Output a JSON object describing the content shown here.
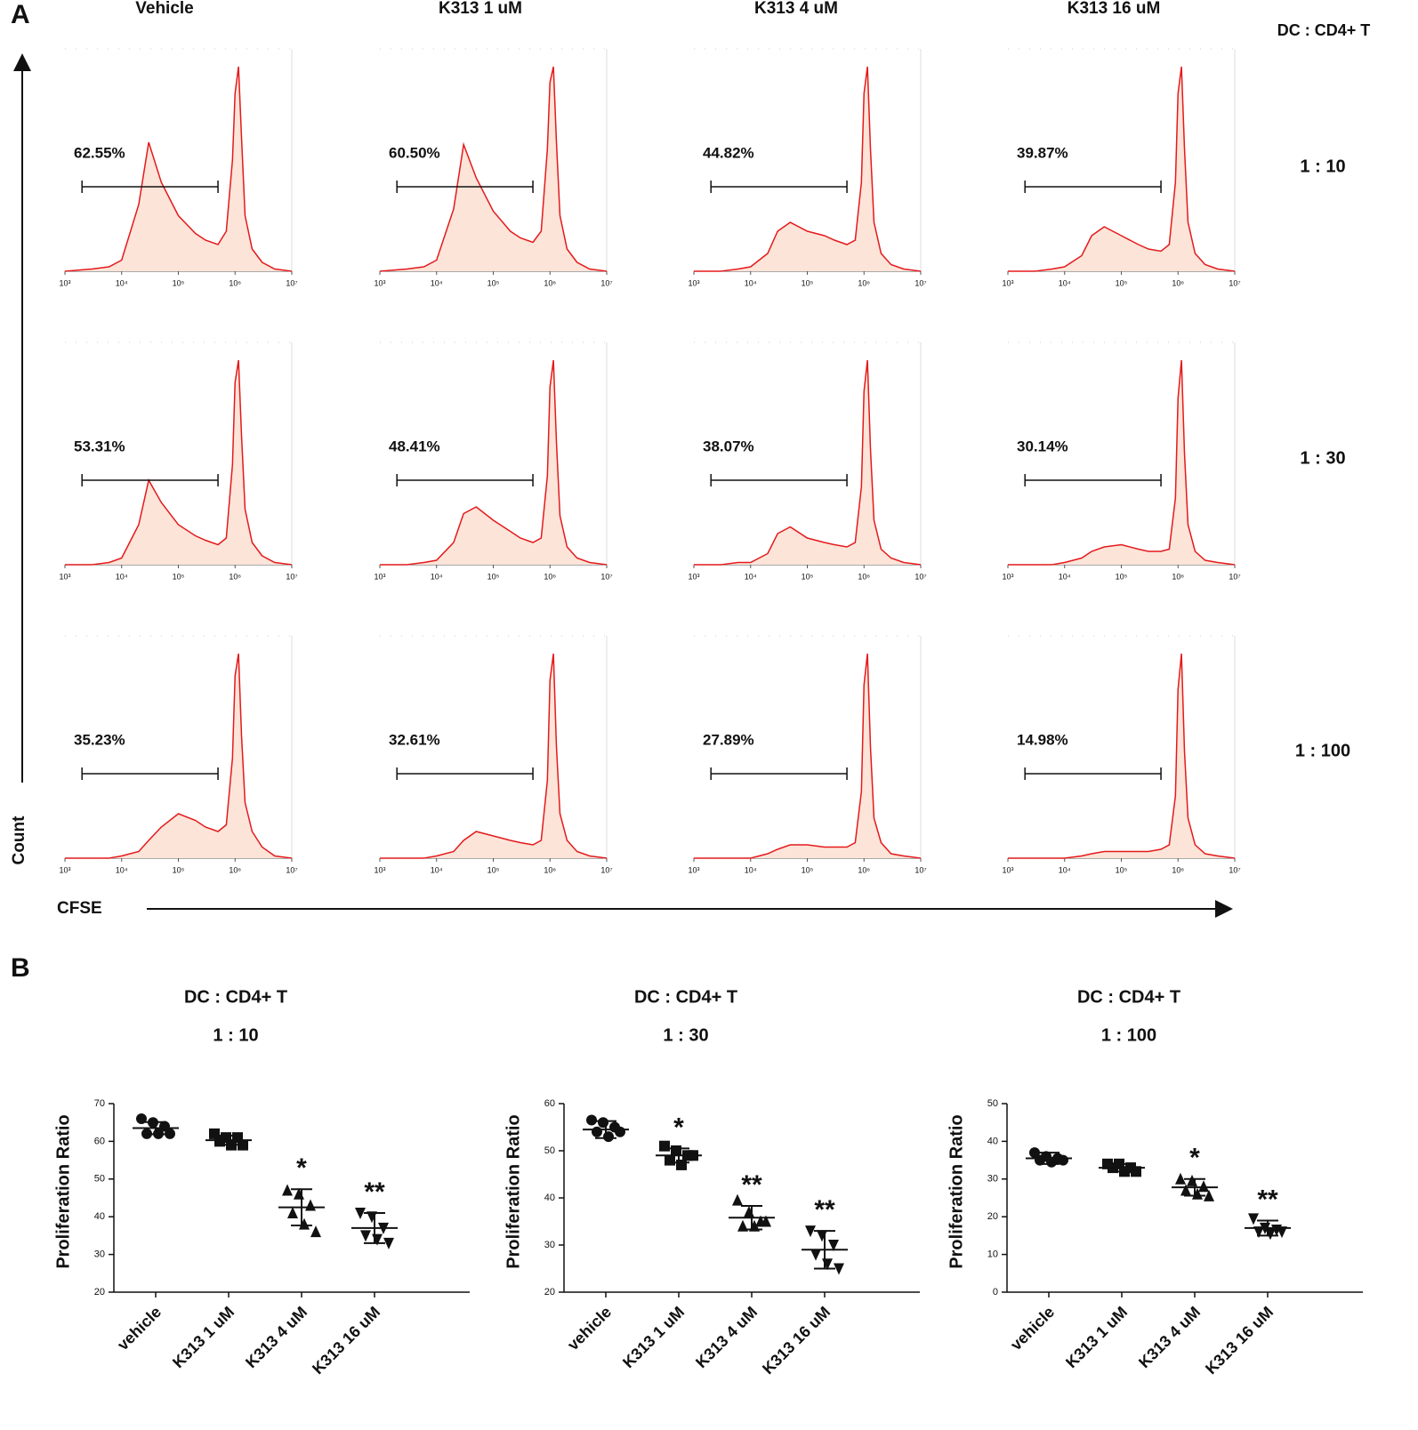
{
  "panel_a": {
    "label": "A",
    "column_titles": [
      "Vehicle",
      "K313 1 uM",
      "K313 4 uM",
      "K313  16 uM"
    ],
    "row_header": "DC : CD4+ T",
    "row_labels": [
      "1 : 10",
      "1 : 30",
      "1 : 100"
    ],
    "y_label": "Count",
    "x_label": "CFSE"
  },
  "panel_b": {
    "label": "B"
  },
  "chart_data": [
    {
      "type": "area",
      "x": [
        1000,
        3000,
        6000,
        10000,
        20000,
        30000,
        50000,
        100000,
        200000,
        300000,
        500000,
        700000,
        900000,
        1000000,
        1150000,
        1300000,
        1500000,
        2000000,
        3000000,
        5000000,
        10000000
      ],
      "values": [
        0,
        1,
        2,
        5,
        30,
        58,
        40,
        25,
        17,
        14,
        12,
        18,
        50,
        80,
        92,
        60,
        25,
        10,
        4,
        1,
        0
      ],
      "color": "#e31a1c",
      "fill": "#fde4d8",
      "log_x": true,
      "xlim": [
        1000,
        10000000
      ],
      "ylim": [
        0,
        100
      ],
      "xticks": [
        {
          "value": 1000,
          "label": "10³"
        },
        {
          "value": 10000,
          "label": "10⁴"
        },
        {
          "value": 100000,
          "label": "10⁵"
        },
        {
          "value": 1000000,
          "label": "10⁶"
        },
        {
          "value": 10000000,
          "label": "10⁷"
        }
      ],
      "gate": [
        2000,
        500000
      ],
      "gate_label": "62.55%"
    },
    {
      "type": "area",
      "x": [
        1000,
        3000,
        6000,
        10000,
        20000,
        30000,
        50000,
        100000,
        200000,
        300000,
        500000,
        700000,
        900000,
        1000000,
        1150000,
        1300000,
        1500000,
        2000000,
        3000000,
        5000000,
        10000000
      ],
      "values": [
        0,
        1,
        2,
        5,
        28,
        57,
        42,
        27,
        18,
        15,
        13,
        18,
        55,
        85,
        92,
        58,
        25,
        10,
        4,
        1,
        0
      ],
      "color": "#e31a1c",
      "fill": "#fde4d8",
      "log_x": true,
      "xlim": [
        1000,
        10000000
      ],
      "ylim": [
        0,
        100
      ],
      "xticks": [
        {
          "value": 1000,
          "label": "10³"
        },
        {
          "value": 10000,
          "label": "10⁴"
        },
        {
          "value": 100000,
          "label": "10⁵"
        },
        {
          "value": 1000000,
          "label": "10⁶"
        },
        {
          "value": 10000000,
          "label": "10⁷"
        }
      ],
      "gate": [
        2000,
        500000
      ],
      "gate_label": "60.50%"
    },
    {
      "type": "area",
      "x": [
        1000,
        3000,
        6000,
        10000,
        20000,
        30000,
        50000,
        100000,
        200000,
        300000,
        500000,
        700000,
        900000,
        1000000,
        1150000,
        1300000,
        1500000,
        2000000,
        3000000,
        5000000,
        10000000
      ],
      "values": [
        0,
        0,
        1,
        2,
        8,
        18,
        22,
        18,
        16,
        14,
        12,
        14,
        40,
        80,
        92,
        55,
        22,
        8,
        3,
        1,
        0
      ],
      "color": "#e31a1c",
      "fill": "#fde4d8",
      "log_x": true,
      "xlim": [
        1000,
        10000000
      ],
      "ylim": [
        0,
        100
      ],
      "xticks": [
        {
          "value": 1000,
          "label": "10³"
        },
        {
          "value": 10000,
          "label": "10⁴"
        },
        {
          "value": 100000,
          "label": "10⁵"
        },
        {
          "value": 1000000,
          "label": "10⁶"
        },
        {
          "value": 10000000,
          "label": "10⁷"
        }
      ],
      "gate": [
        2000,
        500000
      ],
      "gate_label": "44.82%"
    },
    {
      "type": "area",
      "x": [
        1000,
        3000,
        6000,
        10000,
        20000,
        30000,
        50000,
        100000,
        200000,
        300000,
        500000,
        700000,
        900000,
        1000000,
        1150000,
        1300000,
        1500000,
        2000000,
        3000000,
        5000000,
        10000000
      ],
      "values": [
        0,
        0,
        1,
        2,
        7,
        16,
        20,
        16,
        12,
        10,
        9,
        12,
        40,
        80,
        92,
        55,
        22,
        8,
        3,
        1,
        0
      ],
      "color": "#e31a1c",
      "fill": "#fde4d8",
      "log_x": true,
      "xlim": [
        1000,
        10000000
      ],
      "ylim": [
        0,
        100
      ],
      "xticks": [
        {
          "value": 1000,
          "label": "10³"
        },
        {
          "value": 10000,
          "label": "10⁴"
        },
        {
          "value": 100000,
          "label": "10⁵"
        },
        {
          "value": 1000000,
          "label": "10⁶"
        },
        {
          "value": 10000000,
          "label": "10⁷"
        }
      ],
      "gate": [
        2000,
        500000
      ],
      "gate_label": "39.87%"
    },
    {
      "type": "area",
      "x": [
        1000,
        3000,
        6000,
        10000,
        20000,
        30000,
        50000,
        100000,
        200000,
        300000,
        500000,
        700000,
        900000,
        1000000,
        1150000,
        1300000,
        1500000,
        2000000,
        3000000,
        5000000,
        10000000
      ],
      "values": [
        0,
        0,
        1,
        3,
        18,
        38,
        28,
        18,
        13,
        11,
        9,
        12,
        45,
        82,
        92,
        58,
        25,
        10,
        4,
        1,
        0
      ],
      "color": "#e31a1c",
      "fill": "#fde4d8",
      "log_x": true,
      "xlim": [
        1000,
        10000000
      ],
      "ylim": [
        0,
        100
      ],
      "xticks": [
        {
          "value": 1000,
          "label": "10³"
        },
        {
          "value": 10000,
          "label": "10⁴"
        },
        {
          "value": 100000,
          "label": "10⁵"
        },
        {
          "value": 1000000,
          "label": "10⁶"
        },
        {
          "value": 10000000,
          "label": "10⁷"
        }
      ],
      "gate": [
        2000,
        500000
      ],
      "gate_label": "53.31%"
    },
    {
      "type": "area",
      "x": [
        1000,
        3000,
        6000,
        10000,
        20000,
        30000,
        50000,
        100000,
        200000,
        300000,
        500000,
        700000,
        900000,
        1000000,
        1150000,
        1300000,
        1500000,
        2000000,
        3000000,
        5000000,
        10000000
      ],
      "values": [
        0,
        0,
        1,
        2,
        10,
        23,
        26,
        20,
        15,
        12,
        10,
        12,
        40,
        80,
        92,
        55,
        22,
        8,
        3,
        1,
        0
      ],
      "color": "#e31a1c",
      "fill": "#fde4d8",
      "log_x": true,
      "xlim": [
        1000,
        10000000
      ],
      "ylim": [
        0,
        100
      ],
      "xticks": [
        {
          "value": 1000,
          "label": "10³"
        },
        {
          "value": 10000,
          "label": "10⁴"
        },
        {
          "value": 100000,
          "label": "10⁵"
        },
        {
          "value": 1000000,
          "label": "10⁶"
        },
        {
          "value": 10000000,
          "label": "10⁷"
        }
      ],
      "gate": [
        2000,
        500000
      ],
      "gate_label": "48.41%"
    },
    {
      "type": "area",
      "x": [
        1000,
        3000,
        6000,
        10000,
        20000,
        30000,
        50000,
        100000,
        200000,
        300000,
        500000,
        700000,
        900000,
        1000000,
        1150000,
        1300000,
        1500000,
        2000000,
        3000000,
        5000000,
        10000000
      ],
      "values": [
        0,
        0,
        1,
        1,
        5,
        14,
        17,
        12,
        10,
        9,
        8,
        10,
        35,
        78,
        92,
        52,
        20,
        7,
        3,
        1,
        0
      ],
      "color": "#e31a1c",
      "fill": "#fde4d8",
      "log_x": true,
      "xlim": [
        1000,
        10000000
      ],
      "ylim": [
        0,
        100
      ],
      "xticks": [
        {
          "value": 1000,
          "label": "10³"
        },
        {
          "value": 10000,
          "label": "10⁴"
        },
        {
          "value": 100000,
          "label": "10⁵"
        },
        {
          "value": 1000000,
          "label": "10⁶"
        },
        {
          "value": 10000000,
          "label": "10⁷"
        }
      ],
      "gate": [
        2000,
        500000
      ],
      "gate_label": "38.07%"
    },
    {
      "type": "area",
      "x": [
        1000,
        3000,
        6000,
        10000,
        20000,
        30000,
        50000,
        100000,
        200000,
        300000,
        500000,
        700000,
        900000,
        1000000,
        1150000,
        1300000,
        1500000,
        2000000,
        3000000,
        5000000,
        10000000
      ],
      "values": [
        0,
        0,
        0,
        1,
        3,
        6,
        8,
        9,
        7,
        6,
        6,
        7,
        30,
        75,
        92,
        50,
        18,
        6,
        2,
        1,
        0
      ],
      "color": "#e31a1c",
      "fill": "#fde4d8",
      "log_x": true,
      "xlim": [
        1000,
        10000000
      ],
      "ylim": [
        0,
        100
      ],
      "xticks": [
        {
          "value": 1000,
          "label": "10³"
        },
        {
          "value": 10000,
          "label": "10⁴"
        },
        {
          "value": 100000,
          "label": "10⁵"
        },
        {
          "value": 1000000,
          "label": "10⁶"
        },
        {
          "value": 10000000,
          "label": "10⁷"
        }
      ],
      "gate": [
        2000,
        500000
      ],
      "gate_label": "30.14%"
    },
    {
      "type": "area",
      "x": [
        1000,
        3000,
        6000,
        10000,
        20000,
        30000,
        50000,
        100000,
        200000,
        300000,
        500000,
        700000,
        900000,
        1000000,
        1150000,
        1300000,
        1500000,
        2000000,
        3000000,
        5000000,
        10000000
      ],
      "values": [
        0,
        0,
        0,
        1,
        3,
        8,
        14,
        20,
        17,
        14,
        12,
        15,
        45,
        82,
        92,
        55,
        25,
        12,
        5,
        1,
        0
      ],
      "color": "#e31a1c",
      "fill": "#fde4d8",
      "log_x": true,
      "xlim": [
        1000,
        10000000
      ],
      "ylim": [
        0,
        100
      ],
      "xticks": [
        {
          "value": 1000,
          "label": "10³"
        },
        {
          "value": 10000,
          "label": "10⁴"
        },
        {
          "value": 100000,
          "label": "10⁵"
        },
        {
          "value": 1000000,
          "label": "10⁶"
        },
        {
          "value": 10000000,
          "label": "10⁷"
        }
      ],
      "gate": [
        2000,
        500000
      ],
      "gate_label": "35.23%"
    },
    {
      "type": "area",
      "x": [
        1000,
        3000,
        6000,
        10000,
        20000,
        30000,
        50000,
        100000,
        200000,
        300000,
        500000,
        700000,
        900000,
        1000000,
        1150000,
        1300000,
        1500000,
        2000000,
        3000000,
        5000000,
        10000000
      ],
      "values": [
        0,
        0,
        0,
        1,
        3,
        8,
        12,
        10,
        8,
        7,
        6,
        8,
        35,
        80,
        92,
        50,
        20,
        8,
        3,
        1,
        0
      ],
      "color": "#e31a1c",
      "fill": "#fde4d8",
      "log_x": true,
      "xlim": [
        1000,
        10000000
      ],
      "ylim": [
        0,
        100
      ],
      "xticks": [
        {
          "value": 1000,
          "label": "10³"
        },
        {
          "value": 10000,
          "label": "10⁴"
        },
        {
          "value": 100000,
          "label": "10⁵"
        },
        {
          "value": 1000000,
          "label": "10⁶"
        },
        {
          "value": 10000000,
          "label": "10⁷"
        }
      ],
      "gate": [
        2000,
        500000
      ],
      "gate_label": "32.61%"
    },
    {
      "type": "area",
      "x": [
        1000,
        3000,
        6000,
        10000,
        20000,
        30000,
        50000,
        100000,
        200000,
        300000,
        500000,
        700000,
        900000,
        1000000,
        1150000,
        1300000,
        1500000,
        2000000,
        3000000,
        5000000,
        10000000
      ],
      "values": [
        0,
        0,
        0,
        0,
        2,
        4,
        6,
        6,
        5,
        5,
        5,
        7,
        30,
        78,
        92,
        50,
        18,
        7,
        2,
        1,
        0
      ],
      "color": "#e31a1c",
      "fill": "#fde4d8",
      "log_x": true,
      "xlim": [
        1000,
        10000000
      ],
      "ylim": [
        0,
        100
      ],
      "xticks": [
        {
          "value": 1000,
          "label": "10³"
        },
        {
          "value": 10000,
          "label": "10⁴"
        },
        {
          "value": 100000,
          "label": "10⁵"
        },
        {
          "value": 1000000,
          "label": "10⁶"
        },
        {
          "value": 10000000,
          "label": "10⁷"
        }
      ],
      "gate": [
        2000,
        500000
      ],
      "gate_label": "27.89%"
    },
    {
      "type": "area",
      "x": [
        1000,
        3000,
        6000,
        10000,
        20000,
        30000,
        50000,
        100000,
        200000,
        300000,
        500000,
        700000,
        900000,
        1000000,
        1150000,
        1300000,
        1500000,
        2000000,
        3000000,
        5000000,
        10000000
      ],
      "values": [
        0,
        0,
        0,
        0,
        1,
        2,
        3,
        3,
        3,
        3,
        4,
        6,
        28,
        76,
        92,
        48,
        18,
        6,
        2,
        1,
        0
      ],
      "color": "#e31a1c",
      "fill": "#fde4d8",
      "log_x": true,
      "xlim": [
        1000,
        10000000
      ],
      "ylim": [
        0,
        100
      ],
      "xticks": [
        {
          "value": 1000,
          "label": "10³"
        },
        {
          "value": 10000,
          "label": "10⁴"
        },
        {
          "value": 100000,
          "label": "10⁵"
        },
        {
          "value": 1000000,
          "label": "10⁶"
        },
        {
          "value": 10000000,
          "label": "10⁷"
        }
      ],
      "gate": [
        2000,
        500000
      ],
      "gate_label": "14.98%"
    },
    {
      "type": "dot",
      "title": "DC : CD4+ T",
      "subtitle": "1 : 10",
      "y_label": "Proliferation Ratio",
      "categories": [
        "vehicle",
        "K313 1 uM",
        "K313 4 uM",
        "K313 16 uM"
      ],
      "points": [
        [
          66,
          65,
          64,
          62,
          62,
          62
        ],
        [
          62,
          61,
          61,
          60,
          59,
          59
        ],
        [
          47,
          46,
          43,
          41,
          38,
          36
        ],
        [
          41,
          40,
          37,
          35,
          34,
          33
        ]
      ],
      "mean": [
        63.5,
        60.3,
        42.5,
        37
      ],
      "sd": [
        1.6,
        1.2,
        4.8,
        4
      ],
      "markers": [
        "circle",
        "square",
        "triangle",
        "triangle-down"
      ],
      "annotations": [
        null,
        null,
        "*",
        "**"
      ],
      "color": "#111111",
      "ylim": [
        20,
        70
      ],
      "yticks": [
        20,
        30,
        40,
        50,
        60,
        70
      ]
    },
    {
      "type": "dot",
      "title": "DC : CD4+ T",
      "subtitle": "1 : 30",
      "y_label": "Proliferation Ratio",
      "categories": [
        "vehicle",
        "K313 1 uM",
        "K313 4 uM",
        "K313 16 uM"
      ],
      "points": [
        [
          56.5,
          56,
          55,
          54,
          53,
          54
        ],
        [
          51,
          50,
          49,
          48,
          47,
          49
        ],
        [
          39.5,
          37,
          35,
          34,
          34,
          35
        ],
        [
          33,
          32,
          30,
          28,
          26,
          25
        ]
      ],
      "mean": [
        54.5,
        49,
        35.8,
        29
      ],
      "sd": [
        1.8,
        1.5,
        2.5,
        4
      ],
      "markers": [
        "circle",
        "square",
        "triangle",
        "triangle-down"
      ],
      "annotations": [
        null,
        "*",
        "**",
        "**"
      ],
      "color": "#111111",
      "ylim": [
        20,
        60
      ],
      "yticks": [
        20,
        30,
        40,
        50,
        60
      ]
    },
    {
      "type": "dot",
      "title": "DC : CD4+ T",
      "subtitle": "1 : 100",
      "y_label": "Proliferation Ratio",
      "categories": [
        "vehicle",
        "K313 1 uM",
        "K313 4 uM",
        "K313 16 uM"
      ],
      "points": [
        [
          37,
          36,
          35.5,
          35,
          34.5,
          35
        ],
        [
          34,
          34,
          33,
          33,
          32,
          32
        ],
        [
          30,
          29.5,
          28,
          27,
          26,
          25.5
        ],
        [
          19.5,
          17,
          16.5,
          16,
          15.5,
          16
        ]
      ],
      "mean": [
        35.5,
        33,
        27.8,
        17
      ],
      "sd": [
        1.5,
        1,
        2.2,
        2
      ],
      "markers": [
        "circle",
        "square",
        "triangle",
        "triangle-down"
      ],
      "annotations": [
        null,
        null,
        "*",
        "**"
      ],
      "color": "#111111",
      "ylim": [
        0,
        50
      ],
      "yticks": [
        0,
        10,
        20,
        30,
        40,
        50
      ]
    }
  ]
}
